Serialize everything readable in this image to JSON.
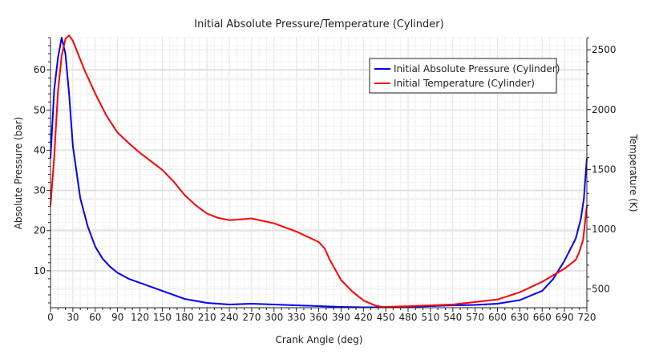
{
  "chart_data": {
    "type": "line",
    "title": "Initial Absolute Pressure/Temperature (Cylinder)",
    "xlabel": "Crank Angle  (deg)",
    "ylabel": "Absolute Pressure  (bar)",
    "y2label": "Temperature  (K)",
    "xlim": [
      0,
      720
    ],
    "ylim": [
      0.8,
      68.2
    ],
    "y2lim": [
      344,
      2608
    ],
    "xticks": [
      0,
      30,
      60,
      90,
      120,
      150,
      180,
      210,
      240,
      270,
      300,
      330,
      360,
      390,
      420,
      450,
      480,
      510,
      540,
      570,
      600,
      630,
      660,
      690,
      720
    ],
    "yticks": [
      10,
      20,
      30,
      40,
      50,
      60
    ],
    "y2ticks": [
      500,
      1000,
      1500,
      2000,
      2500
    ],
    "grid": true,
    "legend_position": "top-right",
    "series": [
      {
        "name": "Initial Absolute Pressure (Cylinder)",
        "axis": "left",
        "color": "#0000ff",
        "x": [
          0,
          5,
          10,
          15,
          20,
          25,
          30,
          40,
          50,
          60,
          70,
          80,
          90,
          105,
          120,
          150,
          180,
          210,
          240,
          270,
          300,
          330,
          360,
          390,
          420,
          450,
          480,
          510,
          540,
          570,
          600,
          630,
          660,
          675,
          690,
          705,
          712,
          716,
          720
        ],
        "y": [
          38,
          55,
          63,
          68,
          64,
          54,
          41,
          28,
          21,
          16,
          13,
          11,
          9.5,
          8,
          7,
          5,
          3,
          2,
          1.6,
          1.8,
          1.6,
          1.4,
          1.2,
          1.0,
          0.9,
          0.9,
          1.0,
          1.2,
          1.4,
          1.5,
          1.8,
          2.7,
          5,
          8,
          12.5,
          18,
          23,
          28,
          38
        ]
      },
      {
        "name": "Initial Temperature (Cylinder)",
        "axis": "right",
        "color": "#ff0000",
        "x": [
          0,
          5,
          10,
          15,
          20,
          25,
          30,
          45,
          60,
          75,
          90,
          105,
          120,
          150,
          165,
          180,
          195,
          210,
          225,
          240,
          270,
          300,
          330,
          360,
          368,
          375,
          390,
          405,
          420,
          435,
          445,
          480,
          540,
          600,
          630,
          660,
          690,
          705,
          710,
          715,
          720
        ],
        "y": [
          1198,
          1600,
          2150,
          2450,
          2590,
          2620,
          2575,
          2340,
          2134,
          1950,
          1808,
          1720,
          1639,
          1497,
          1400,
          1286,
          1200,
          1131,
          1095,
          1076,
          1090,
          1049,
          981,
          893,
          840,
          744,
          575,
          480,
          405,
          365,
          350,
          357,
          371,
          412,
          473,
          561,
          670,
          744,
          812,
          914,
          1198
        ]
      }
    ]
  }
}
